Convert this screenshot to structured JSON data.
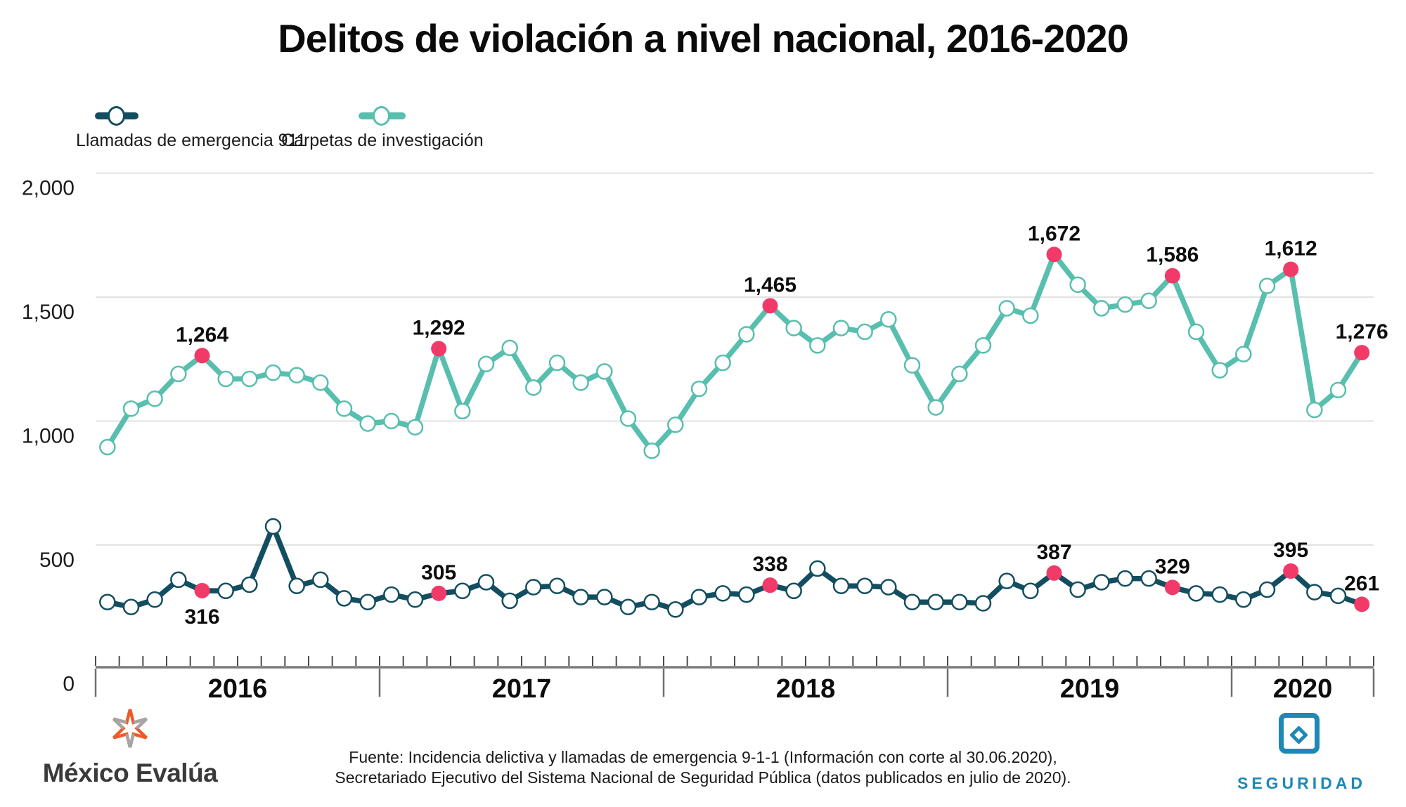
{
  "title": "Delitos de violación a nivel nacional, 2016-2020",
  "legend": [
    {
      "label": "Llamadas de emergencia 911",
      "color": "#134e60"
    },
    {
      "label": "Carpetas de investigación",
      "color": "#58bfae"
    }
  ],
  "chart_data": {
    "type": "line",
    "title": "Delitos de violación a nivel nacional, 2016-2020",
    "xlabel": "",
    "ylabel": "",
    "ylim": [
      0,
      2000
    ],
    "grid": true,
    "legend_position": "top-left",
    "highlight_color": "#f23a69",
    "year_labels": [
      "2016",
      "2017",
      "2018",
      "2019",
      "2020"
    ],
    "months": [
      "2016-01",
      "2016-02",
      "2016-03",
      "2016-04",
      "2016-05",
      "2016-06",
      "2016-07",
      "2016-08",
      "2016-09",
      "2016-10",
      "2016-11",
      "2016-12",
      "2017-01",
      "2017-02",
      "2017-03",
      "2017-04",
      "2017-05",
      "2017-06",
      "2017-07",
      "2017-08",
      "2017-09",
      "2017-10",
      "2017-11",
      "2017-12",
      "2018-01",
      "2018-02",
      "2018-03",
      "2018-04",
      "2018-05",
      "2018-06",
      "2018-07",
      "2018-08",
      "2018-09",
      "2018-10",
      "2018-11",
      "2018-12",
      "2019-01",
      "2019-02",
      "2019-03",
      "2019-04",
      "2019-05",
      "2019-06",
      "2019-07",
      "2019-08",
      "2019-09",
      "2019-10",
      "2019-11",
      "2019-12",
      "2020-01",
      "2020-02",
      "2020-03",
      "2020-04",
      "2020-05",
      "2020-06"
    ],
    "y_axis": {
      "ticks": [
        0,
        500,
        1000,
        1500,
        2000
      ],
      "tick_labels": [
        "0",
        "500",
        "1,000",
        "1,500",
        "2,000"
      ]
    },
    "series": [
      {
        "key": "carpetas",
        "name": "Carpetas de investigación",
        "color": "#58bfae",
        "values": [
          895,
          1050,
          1090,
          1190,
          1264,
          1170,
          1170,
          1195,
          1185,
          1155,
          1050,
          990,
          1000,
          975,
          1292,
          1040,
          1230,
          1295,
          1135,
          1235,
          1155,
          1200,
          1010,
          880,
          985,
          1130,
          1235,
          1350,
          1465,
          1375,
          1305,
          1375,
          1360,
          1410,
          1225,
          1055,
          1190,
          1305,
          1455,
          1425,
          1672,
          1550,
          1455,
          1470,
          1485,
          1586,
          1360,
          1205,
          1270,
          1545,
          1612,
          1045,
          1125,
          1276
        ]
      },
      {
        "key": "llamadas",
        "name": "Llamadas de emergencia 911",
        "color": "#134e60",
        "values": [
          270,
          250,
          280,
          360,
          316,
          315,
          340,
          575,
          335,
          360,
          285,
          270,
          300,
          280,
          305,
          315,
          350,
          275,
          330,
          335,
          290,
          290,
          250,
          270,
          240,
          290,
          305,
          300,
          338,
          315,
          405,
          335,
          335,
          330,
          270,
          270,
          270,
          265,
          355,
          315,
          387,
          320,
          350,
          365,
          365,
          329,
          305,
          300,
          280,
          320,
          395,
          310,
          295,
          261
        ]
      }
    ],
    "annotations": [
      {
        "series": "carpetas",
        "index": 4,
        "month": "2016-05",
        "value": 1264,
        "label": "1,264",
        "position": "above"
      },
      {
        "series": "carpetas",
        "index": 14,
        "month": "2017-03",
        "value": 1292,
        "label": "1,292",
        "position": "above"
      },
      {
        "series": "carpetas",
        "index": 28,
        "month": "2018-05",
        "value": 1465,
        "label": "1,465",
        "position": "above"
      },
      {
        "series": "carpetas",
        "index": 40,
        "month": "2019-05",
        "value": 1672,
        "label": "1,672",
        "position": "above"
      },
      {
        "series": "carpetas",
        "index": 45,
        "month": "2019-10",
        "value": 1586,
        "label": "1,586",
        "position": "above"
      },
      {
        "series": "carpetas",
        "index": 50,
        "month": "2020-03",
        "value": 1612,
        "label": "1,612",
        "position": "above"
      },
      {
        "series": "carpetas",
        "index": 53,
        "month": "2020-06",
        "value": 1276,
        "label": "1,276",
        "position": "above"
      },
      {
        "series": "llamadas",
        "index": 4,
        "month": "2016-05",
        "value": 316,
        "label": "316",
        "position": "below"
      },
      {
        "series": "llamadas",
        "index": 14,
        "month": "2017-03",
        "value": 305,
        "label": "305",
        "position": "above"
      },
      {
        "series": "llamadas",
        "index": 28,
        "month": "2018-05",
        "value": 338,
        "label": "338",
        "position": "above"
      },
      {
        "series": "llamadas",
        "index": 40,
        "month": "2019-05",
        "value": 387,
        "label": "387",
        "position": "above"
      },
      {
        "series": "llamadas",
        "index": 45,
        "month": "2019-10",
        "value": 329,
        "label": "329",
        "position": "above"
      },
      {
        "series": "llamadas",
        "index": 50,
        "month": "2020-03",
        "value": 395,
        "label": "395",
        "position": "above"
      },
      {
        "series": "llamadas",
        "index": 53,
        "month": "2020-06",
        "value": 261,
        "label": "261",
        "position": "above"
      }
    ]
  },
  "footer": {
    "line1": "Fuente: Incidencia delictiva y llamadas de emergencia 9-1-1 (Información con corte al 30.06.2020),",
    "line2": "Secretariado Ejecutivo del Sistema Nacional de Seguridad Pública (datos publicados en julio de 2020)."
  },
  "logos": {
    "mexico_evalua": {
      "text": "México Evalúa",
      "orange": "#ee5a29",
      "gray": "#a5a5a5"
    },
    "seguridad": {
      "text": "SEGURIDAD",
      "color": "#1d89b4"
    }
  },
  "colors": {
    "accent_pink": "#f23a69",
    "carpetas_teal": "#58bfae",
    "llamadas_dark": "#134e60",
    "gridline": "#e2e2e2",
    "axis": "#7c7c7c"
  }
}
